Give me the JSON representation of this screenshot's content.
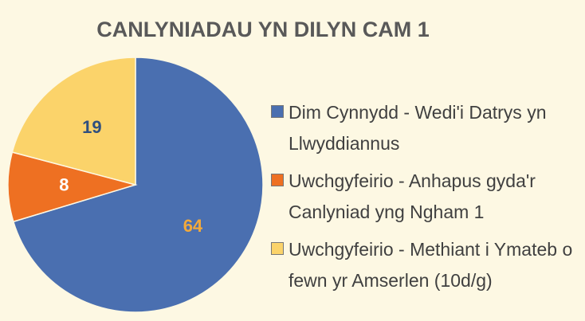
{
  "chart_data": {
    "type": "pie",
    "title": "CANLYNIADAU YN DILYN CAM 1",
    "categories": [
      "Dim Cynnydd - Wedi'i Datrys yn Llwyddiannus",
      "Uwchgyfeirio - Anhapus gyda'r Canlyniad yng Ngham 1",
      "Uwchgyfeirio - Methiant i Ymateb o fewn yr Amserlen (10d/g)"
    ],
    "values": [
      64,
      8,
      19
    ],
    "colors": [
      "#4a6fb0",
      "#ee7022",
      "#fbd36a"
    ],
    "label_colors": [
      "#f2a93b",
      "#ffffff",
      "#2f4f7f"
    ]
  }
}
